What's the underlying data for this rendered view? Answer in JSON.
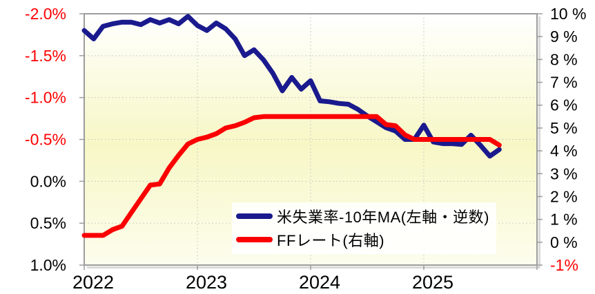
{
  "chart_data": {
    "type": "line",
    "title": "",
    "x_axis": {
      "unit": "month",
      "start": "2022-01",
      "end": "2025-09",
      "domain_months": 48,
      "tick_labels": [
        "2022",
        "2023",
        "2024",
        "2025"
      ]
    },
    "left_axis": {
      "inverted": true,
      "top_value": -2.0,
      "bottom_value": 1.0,
      "ticks": [
        {
          "text": "-2.0%",
          "value": -2.0,
          "color": "#FF0000"
        },
        {
          "text": "-1.5%",
          "value": -1.5,
          "color": "#FF0000"
        },
        {
          "text": "-1.0%",
          "value": -1.0,
          "color": "#FF0000"
        },
        {
          "text": "-0.5%",
          "value": -0.5,
          "color": "#FF0000"
        },
        {
          "text": "0.0%",
          "value": 0.0,
          "color": "#000000"
        },
        {
          "text": "0.5%",
          "value": 0.5,
          "color": "#000000"
        },
        {
          "text": "1.0%",
          "value": 1.0,
          "color": "#000000"
        }
      ]
    },
    "right_axis": {
      "top_value": 10,
      "bottom_value": -1,
      "ticks": [
        {
          "text": "10 %",
          "value": 10,
          "color": "#000000"
        },
        {
          "text": "9 %",
          "value": 9,
          "color": "#000000"
        },
        {
          "text": "8 %",
          "value": 8,
          "color": "#000000"
        },
        {
          "text": "7 %",
          "value": 7,
          "color": "#000000"
        },
        {
          "text": "6 %",
          "value": 6,
          "color": "#000000"
        },
        {
          "text": "5 %",
          "value": 5,
          "color": "#000000"
        },
        {
          "text": "4 %",
          "value": 4,
          "color": "#000000"
        },
        {
          "text": "3 %",
          "value": 3,
          "color": "#000000"
        },
        {
          "text": "2 %",
          "value": 2,
          "color": "#000000"
        },
        {
          "text": "1 %",
          "value": 1,
          "color": "#000000"
        },
        {
          "text": "0 %",
          "value": 0,
          "color": "#000000"
        },
        {
          "text": "-1%",
          "value": -1,
          "color": "#FF0000"
        }
      ]
    },
    "series": [
      {
        "key": "us-unemployment-gap",
        "name": "米失業率-10年MA(左軸・逆数)",
        "axis": "left",
        "color": "#1A1A8E",
        "start_month": "2022-01",
        "values": [
          -1.8,
          -1.7,
          -1.85,
          -1.88,
          -1.9,
          -1.9,
          -1.87,
          -1.93,
          -1.89,
          -1.93,
          -1.88,
          -1.97,
          -1.86,
          -1.8,
          -1.89,
          -1.82,
          -1.7,
          -1.5,
          -1.57,
          -1.45,
          -1.29,
          -1.08,
          -1.24,
          -1.1,
          -1.2,
          -0.96,
          -0.95,
          -0.93,
          -0.92,
          -0.86,
          -0.78,
          -0.71,
          -0.64,
          -0.6,
          -0.5,
          -0.5,
          -0.67,
          -0.47,
          -0.45,
          -0.45,
          -0.44,
          -0.55,
          -0.43,
          -0.3,
          -0.38
        ]
      },
      {
        "key": "ff-rate",
        "name": "FFレート(右軸)",
        "axis": "right",
        "color": "#FA0000",
        "start_month": "2022-01",
        "values": [
          0.3,
          0.3,
          0.3,
          0.55,
          0.7,
          1.3,
          1.9,
          2.5,
          2.55,
          3.25,
          3.8,
          4.3,
          4.5,
          4.6,
          4.75,
          5.0,
          5.1,
          5.25,
          5.45,
          5.5,
          5.5,
          5.5,
          5.5,
          5.5,
          5.5,
          5.5,
          5.5,
          5.5,
          5.5,
          5.5,
          5.5,
          5.5,
          5.15,
          5.1,
          4.7,
          4.5,
          4.5,
          4.5,
          4.5,
          4.5,
          4.5,
          4.5,
          4.5,
          4.5,
          4.25
        ]
      }
    ],
    "grid": true,
    "legend_position": "inside-bottom-center",
    "plot_bg_gradient": [
      "#FFFFFF",
      "#F7F7C6",
      "#FDFDEE"
    ],
    "grid_color": "#CFCFC6",
    "border_color": "#9C9C9C"
  }
}
